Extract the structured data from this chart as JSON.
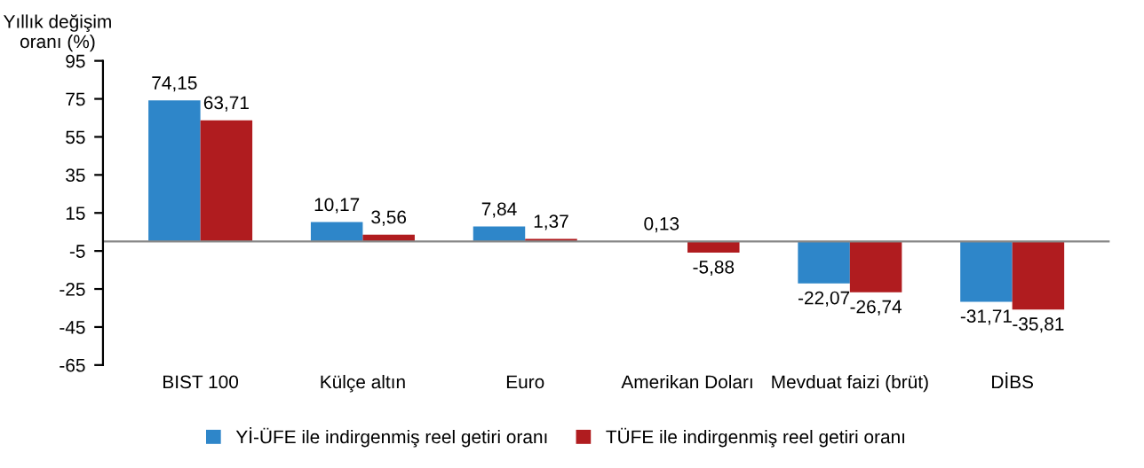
{
  "chart_data": {
    "type": "bar",
    "ylabel": "Yıllık değişim\noranı (%)",
    "categories": [
      "BIST 100",
      "Külçe altın",
      "Euro",
      "Amerikan Doları",
      "Mevduat faizi (brüt)",
      "DİBS"
    ],
    "series": [
      {
        "name": "Yİ-ÜFE ile indirgenmiş reel getiri oranı",
        "color": "#2e86c9",
        "values": [
          74.15,
          10.17,
          7.84,
          0.13,
          -22.07,
          -31.71
        ],
        "value_labels": [
          "74,15",
          "10,17",
          "7,84",
          "0,13",
          "-22,07",
          "-31,71"
        ]
      },
      {
        "name": "TÜFE ile indirgenmiş reel getiri oranı",
        "color": "#b01c1f",
        "values": [
          63.71,
          3.56,
          1.37,
          -5.88,
          -26.74,
          -35.81
        ],
        "value_labels": [
          "63,71",
          "3,56",
          "1,37",
          "-5,88",
          "-26,74",
          "-35,81"
        ]
      }
    ],
    "ylim": [
      -65,
      95
    ],
    "yticks": [
      95,
      75,
      55,
      35,
      15,
      -5,
      -25,
      -45,
      -65
    ],
    "grid": false,
    "legend": "bottom"
  }
}
